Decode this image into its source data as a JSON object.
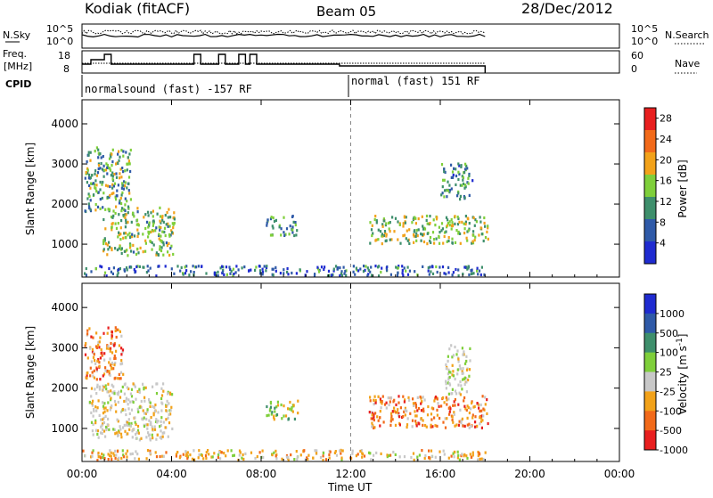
{
  "header": {
    "station": "Kodiak (fitACF)",
    "beam": "Beam 05",
    "date": "28/Dec/2012"
  },
  "noise_panel": {
    "left_label": "N.Sky",
    "right_label": "N.Search",
    "ticks_left": [
      "10^5",
      "10^0"
    ],
    "ticks_right": [
      "10^5",
      "10^0"
    ]
  },
  "freq_panel": {
    "left_label_1": "Freq.",
    "left_label_2": "[MHz]",
    "right_label": "Nave",
    "ticks_left": [
      "18",
      "8"
    ],
    "ticks_right": [
      "60",
      "0"
    ]
  },
  "cpid": {
    "label": "CPID",
    "mode1": "normalsound (fast) -157 RF",
    "mode2": "normal (fast) 151 RF"
  },
  "time_axis": {
    "label": "Time UT",
    "ticks": [
      "00:00",
      "04:00",
      "08:00",
      "12:00",
      "16:00",
      "20:00",
      "00:00"
    ]
  },
  "chart_data": [
    {
      "type": "heatmap",
      "title": "",
      "xlabel": "Time UT",
      "ylabel": "Slant Range [km]",
      "xlim_hours": [
        0,
        24
      ],
      "ylim": [
        180,
        4600
      ],
      "yticks": [
        "1000",
        "2000",
        "3000",
        "4000"
      ],
      "colorbar": {
        "label": "Power [dB]",
        "ticks": [
          "4",
          "8",
          "12",
          "16",
          "20",
          "24",
          "28"
        ],
        "range": [
          0,
          30
        ],
        "colors": [
          "#1f2bd0",
          "#2f5aa8",
          "#3e8f6c",
          "#7fcf3b",
          "#f2a21a",
          "#f26a1a",
          "#e81f1f"
        ]
      },
      "clusters": [
        {
          "t": [
            0.9,
            4.1
          ],
          "r": [
            700,
            1900
          ],
          "level": 14
        },
        {
          "t": [
            0.1,
            2.2
          ],
          "r": [
            1800,
            3400
          ],
          "level": 12
        },
        {
          "t": [
            8.2,
            9.6
          ],
          "r": [
            1200,
            1700
          ],
          "level": 10
        },
        {
          "t": [
            12.8,
            18.1
          ],
          "r": [
            1000,
            1700
          ],
          "level": 15
        },
        {
          "t": [
            16.0,
            17.4
          ],
          "r": [
            2100,
            3000
          ],
          "level": 9
        },
        {
          "t": [
            0.0,
            18.0
          ],
          "r": [
            200,
            450
          ],
          "level": 6
        }
      ]
    },
    {
      "type": "heatmap",
      "title": "",
      "xlabel": "Time UT",
      "ylabel": "Slant Range [km]",
      "xlim_hours": [
        0,
        24
      ],
      "ylim": [
        180,
        4600
      ],
      "yticks": [
        "1000",
        "2000",
        "3000",
        "4000"
      ],
      "colorbar": {
        "label": "Velocity [m s^-1]",
        "ticks": [
          "1000",
          "500",
          "100",
          "25",
          "-25",
          "-100",
          "-500",
          "-1000"
        ],
        "colors": [
          "#1f2bd0",
          "#2f5aa8",
          "#3e8f6c",
          "#7fcf3b",
          "#c8c8c8",
          "#f2a21a",
          "#f26a1a",
          "#e81f1f"
        ]
      },
      "clusters": [
        {
          "t": [
            0.3,
            4.0
          ],
          "r": [
            700,
            2100
          ],
          "level": "ground"
        },
        {
          "t": [
            0.1,
            1.8
          ],
          "r": [
            2200,
            3500
          ],
          "level": "neg"
        },
        {
          "t": [
            8.2,
            9.6
          ],
          "r": [
            1200,
            1700
          ],
          "level": "pos"
        },
        {
          "t": [
            12.8,
            18.1
          ],
          "r": [
            1000,
            1800
          ],
          "level": "neg"
        },
        {
          "t": [
            16.2,
            17.3
          ],
          "r": [
            1800,
            3100
          ],
          "level": "ground"
        },
        {
          "t": [
            0.0,
            18.0
          ],
          "r": [
            200,
            450
          ],
          "level": "mixed"
        }
      ]
    }
  ]
}
